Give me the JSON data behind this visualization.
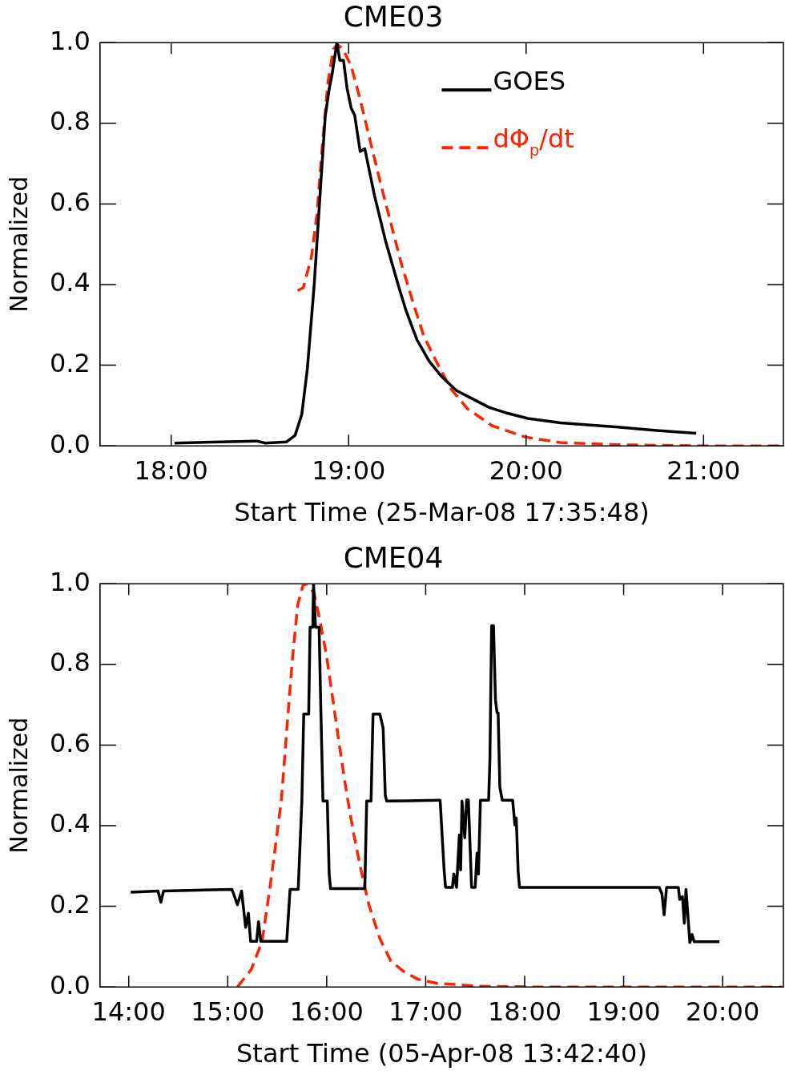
{
  "chart_data": [
    {
      "type": "line",
      "title": "CME03",
      "xlabel": "Start Time (25-Mar-08 17:35:48)",
      "ylabel": "Normalized",
      "xlim": [
        17.599,
        21.45
      ],
      "xticks": [
        {
          "value": 18,
          "label": "18:00"
        },
        {
          "value": 19,
          "label": "19:00"
        },
        {
          "value": 20,
          "label": "20:00"
        },
        {
          "value": 21,
          "label": "21:00"
        }
      ],
      "ylim": [
        0,
        1
      ],
      "yticks": [
        {
          "value": 0,
          "label": "0.0"
        },
        {
          "value": 0.2,
          "label": "0.2"
        },
        {
          "value": 0.4,
          "label": "0.4"
        },
        {
          "value": 0.6,
          "label": "0.6"
        },
        {
          "value": 0.8,
          "label": "0.8"
        },
        {
          "value": 1,
          "label": "1.0"
        }
      ],
      "grid": false,
      "legend": "top right",
      "marker": "none",
      "series": [
        {
          "name": "GOES",
          "color": "#000000",
          "line_style": "solid",
          "x": [
            18.019,
            18.482,
            18.53,
            18.65,
            18.698,
            18.736,
            18.767,
            18.806,
            18.837,
            18.868,
            18.891,
            18.906,
            18.934,
            18.95,
            18.971,
            18.991,
            19.014,
            19.034,
            19.065,
            19.091,
            19.145,
            19.207,
            19.284,
            19.323,
            19.385,
            19.454,
            19.516,
            19.547,
            19.608,
            19.701,
            19.793,
            19.886,
            20.01,
            20.195,
            20.503,
            20.735,
            20.959
          ],
          "values": [
            0.007,
            0.012,
            0.007,
            0.01,
            0.026,
            0.078,
            0.19,
            0.4,
            0.61,
            0.817,
            0.887,
            0.92,
            1.0,
            0.956,
            0.956,
            0.887,
            0.838,
            0.82,
            0.73,
            0.737,
            0.622,
            0.51,
            0.392,
            0.336,
            0.263,
            0.21,
            0.176,
            0.162,
            0.137,
            0.116,
            0.095,
            0.082,
            0.068,
            0.057,
            0.047,
            0.038,
            0.031
          ]
        },
        {
          "name": "dΦ$_{p}$/dt",
          "color": "#ff2200",
          "line_style": "dashed",
          "x": [
            18.713,
            18.744,
            18.79,
            18.821,
            18.852,
            18.883,
            18.914,
            18.937,
            18.968,
            19.014,
            19.061,
            19.115,
            19.177,
            19.238,
            19.3,
            19.362,
            19.423,
            19.5,
            19.577,
            19.67,
            19.809,
            19.994,
            20.195,
            20.503,
            21.0,
            21.45
          ],
          "values": [
            0.385,
            0.392,
            0.468,
            0.573,
            0.747,
            0.9,
            0.984,
            0.995,
            0.984,
            0.942,
            0.866,
            0.768,
            0.656,
            0.552,
            0.447,
            0.357,
            0.273,
            0.204,
            0.141,
            0.092,
            0.05,
            0.022,
            0.008,
            0.003,
            0,
            0
          ]
        }
      ]
    },
    {
      "type": "line",
      "title": "CME04",
      "xlabel": "Start Time (05-Apr-08 13:42:40)",
      "ylabel": "Normalized",
      "xlim": [
        13.71,
        20.614
      ],
      "xticks": [
        {
          "value": 14,
          "label": "14:00"
        },
        {
          "value": 15,
          "label": "15:00"
        },
        {
          "value": 16,
          "label": "16:00"
        },
        {
          "value": 17,
          "label": "17:00"
        },
        {
          "value": 18,
          "label": "18:00"
        },
        {
          "value": 19,
          "label": "19:00"
        },
        {
          "value": 20,
          "label": "20:00"
        }
      ],
      "ylim": [
        0,
        1
      ],
      "yticks": [
        {
          "value": 0,
          "label": "0.0"
        },
        {
          "value": 0.2,
          "label": "0.2"
        },
        {
          "value": 0.4,
          "label": "0.4"
        },
        {
          "value": 0.6,
          "label": "0.6"
        },
        {
          "value": 0.8,
          "label": "0.8"
        },
        {
          "value": 1,
          "label": "1.0"
        }
      ],
      "grid": false,
      "marker": "none",
      "series": [
        {
          "color": "#000000",
          "line_style": "solid",
          "x": [
            14.02,
            14.296,
            14.324,
            14.352,
            15.043,
            15.098,
            15.14,
            15.181,
            15.209,
            15.231,
            15.292,
            15.311,
            15.334,
            15.596,
            15.63,
            15.712,
            15.749,
            15.768,
            15.818,
            15.832,
            15.859,
            15.867,
            15.887,
            15.923,
            15.942,
            15.962,
            16.006,
            16.025,
            16.039,
            16.385,
            16.404,
            16.448,
            16.468,
            16.537,
            16.57,
            16.592,
            16.606,
            17.132,
            17.146,
            17.187,
            17.201,
            17.27,
            17.284,
            17.312,
            17.34,
            17.353,
            17.367,
            17.395,
            17.414,
            17.431,
            17.464,
            17.5,
            17.519,
            17.533,
            17.553,
            17.636,
            17.649,
            17.666,
            17.685,
            17.705,
            17.721,
            17.732,
            17.749,
            17.774,
            17.879,
            17.901,
            17.915,
            17.934,
            17.948,
            19.359,
            19.387,
            19.409,
            19.434,
            19.553,
            19.566,
            19.594,
            19.613,
            19.63,
            19.669,
            19.691,
            19.713,
            19.968
          ],
          "values": [
            0.235,
            0.238,
            0.21,
            0.238,
            0.242,
            0.204,
            0.238,
            0.148,
            0.183,
            0.113,
            0.113,
            0.162,
            0.113,
            0.113,
            0.242,
            0.242,
            0.461,
            0.677,
            0.677,
            0.892,
            0.892,
            1.0,
            0.892,
            0.892,
            0.677,
            0.461,
            0.461,
            0.28,
            0.244,
            0.244,
            0.461,
            0.461,
            0.677,
            0.677,
            0.642,
            0.475,
            0.461,
            0.463,
            0.463,
            0.287,
            0.247,
            0.247,
            0.28,
            0.247,
            0.377,
            0.29,
            0.461,
            0.37,
            0.464,
            0.464,
            0.247,
            0.247,
            0.332,
            0.28,
            0.463,
            0.463,
            0.565,
            0.896,
            0.896,
            0.712,
            0.68,
            0.68,
            0.496,
            0.463,
            0.463,
            0.402,
            0.419,
            0.287,
            0.247,
            0.247,
            0.231,
            0.179,
            0.247,
            0.247,
            0.217,
            0.224,
            0.158,
            0.242,
            0.11,
            0.13,
            0.112,
            0.112
          ]
        },
        {
          "color": "#ff2200",
          "line_style": "dashed",
          "x": [
            15.098,
            15.237,
            15.347,
            15.43,
            15.486,
            15.541,
            15.596,
            15.652,
            15.707,
            15.762,
            15.804,
            15.873,
            15.928,
            15.997,
            16.067,
            16.136,
            16.205,
            16.274,
            16.343,
            16.426,
            16.537,
            16.648,
            16.786,
            16.924,
            17.118,
            17.257,
            17.533,
            18.087,
            20.6
          ],
          "values": [
            0,
            0.043,
            0.113,
            0.252,
            0.357,
            0.461,
            0.635,
            0.809,
            0.948,
            0.997,
            1.0,
            0.976,
            0.913,
            0.823,
            0.705,
            0.586,
            0.475,
            0.378,
            0.294,
            0.204,
            0.12,
            0.064,
            0.037,
            0.019,
            0.009,
            0.007,
            0.002,
            0,
            0
          ]
        }
      ]
    }
  ]
}
